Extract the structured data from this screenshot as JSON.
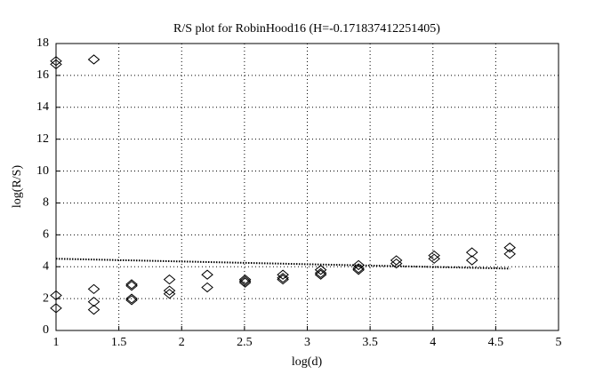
{
  "chart_data": {
    "type": "scatter",
    "title": "R/S plot for RobinHood16 (H=-0.171837412251405)",
    "xlabel": "log(d)",
    "ylabel": "log(R/S)",
    "xlim": [
      1,
      5
    ],
    "ylim": [
      0,
      18
    ],
    "xticks": [
      1,
      1.5,
      2,
      2.5,
      3,
      3.5,
      4,
      4.5,
      5
    ],
    "yticks": [
      0,
      2,
      4,
      6,
      8,
      10,
      12,
      14,
      16,
      18
    ],
    "grid": true,
    "series": [
      {
        "marker": "diamond",
        "color": "#000000",
        "x": [
          1,
          1,
          1,
          1,
          1.301,
          1.301,
          1.301,
          1.301,
          1.602,
          1.602,
          1.602,
          1.602,
          1.903,
          1.903,
          1.903,
          2.204,
          2.204,
          2.505,
          2.505,
          2.505,
          2.806,
          2.806,
          2.806,
          3.107,
          3.107,
          3.107,
          3.408,
          3.408,
          3.408,
          3.709,
          3.709,
          4.01,
          4.01,
          4.311,
          4.311,
          4.612,
          4.612
        ],
        "y": [
          16.9,
          16.7,
          2.2,
          1.4,
          17.0,
          2.6,
          1.8,
          1.3,
          2.9,
          2.8,
          2.0,
          1.9,
          3.2,
          2.5,
          2.3,
          3.5,
          2.7,
          3.2,
          3.1,
          3.0,
          3.5,
          3.3,
          3.2,
          3.8,
          3.6,
          3.5,
          4.1,
          3.9,
          3.8,
          4.4,
          4.2,
          4.7,
          4.5,
          4.9,
          4.4,
          5.2,
          4.8
        ]
      },
      {
        "style": "dotted",
        "color": "#000000",
        "x": [
          1,
          4.612
        ],
        "y": [
          4.5,
          3.88
        ]
      }
    ]
  }
}
